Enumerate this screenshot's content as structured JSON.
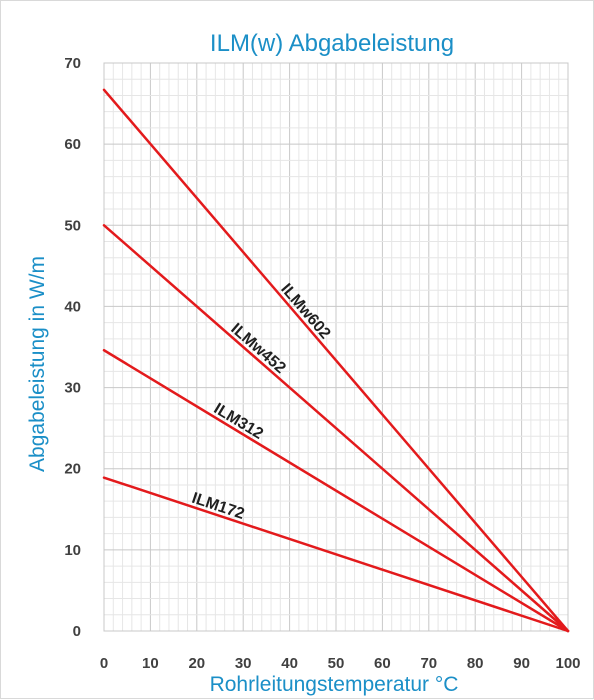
{
  "chart_data": {
    "type": "line",
    "title": "ILM(w) Abgabeleistung",
    "xlabel": "Rohrleitungstemperatur °C",
    "ylabel": "Abgabeleistung in W/m",
    "xlim": [
      0,
      100
    ],
    "ylim": [
      0,
      70
    ],
    "x_ticks": [
      "0",
      "10",
      "20",
      "30",
      "40",
      "50",
      "60",
      "70",
      "80",
      "90",
      "100"
    ],
    "y_ticks": [
      "0",
      "10",
      "20",
      "30",
      "40",
      "50",
      "60",
      "70"
    ],
    "grid": true,
    "legend": "none",
    "series": [
      {
        "name": "ILMw602",
        "x": [
          0,
          100
        ],
        "values": [
          66.7,
          0
        ]
      },
      {
        "name": "ILMw452",
        "x": [
          0,
          100
        ],
        "values": [
          50,
          0
        ]
      },
      {
        "name": "ILM312",
        "x": [
          0,
          100
        ],
        "values": [
          34.6,
          0
        ]
      },
      {
        "name": "ILM172",
        "x": [
          0,
          100
        ],
        "values": [
          18.9,
          0
        ]
      }
    ]
  },
  "colors": {
    "series_line": "#e31a1c",
    "title": "#1b8fc7",
    "axis_title": "#1b8fc7",
    "grid_major": "#c8c8c8",
    "grid_minor": "#e6e6e6"
  }
}
